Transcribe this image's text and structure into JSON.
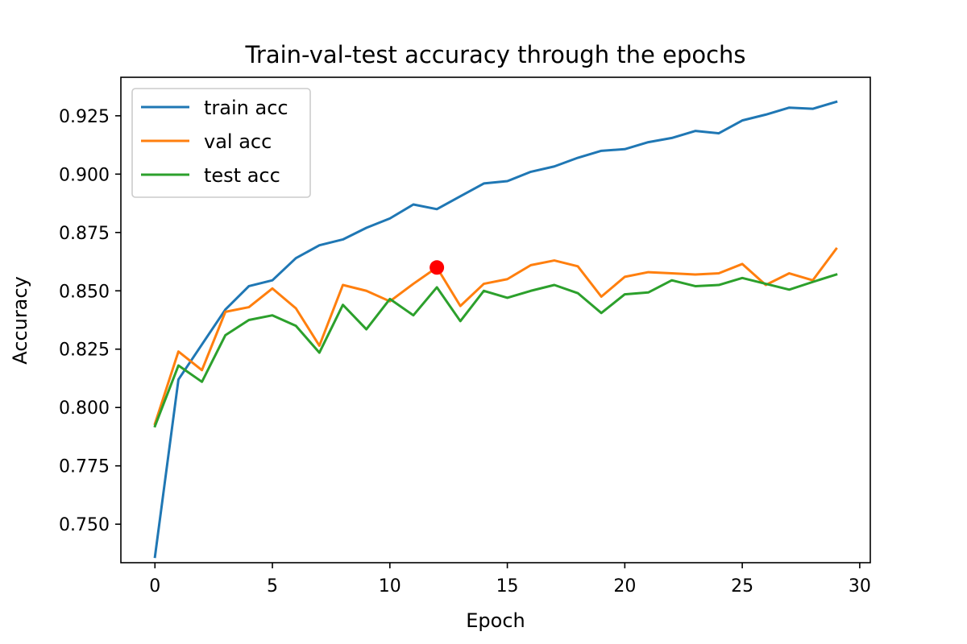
{
  "chart_data": {
    "type": "line",
    "title": "Train-val-test accuracy through the epochs",
    "xlabel": "Epoch",
    "ylabel": "Accuracy",
    "xlim": [
      -1.45,
      30.45
    ],
    "ylim": [
      0.7335,
      0.9415
    ],
    "xticks": [
      0,
      5,
      10,
      15,
      20,
      25,
      30
    ],
    "yticks": [
      0.75,
      0.775,
      0.8,
      0.825,
      0.85,
      0.875,
      0.9,
      0.925
    ],
    "ytick_labels": [
      "0.750",
      "0.775",
      "0.800",
      "0.825",
      "0.850",
      "0.875",
      "0.900",
      "0.925"
    ],
    "grid": false,
    "legend_position": "upper-left",
    "x": [
      0,
      1,
      2,
      3,
      4,
      5,
      6,
      7,
      8,
      9,
      10,
      11,
      12,
      13,
      14,
      15,
      16,
      17,
      18,
      19,
      20,
      21,
      22,
      23,
      24,
      25,
      26,
      27,
      28,
      29
    ],
    "series": [
      {
        "name": "train acc",
        "color": "#1f77b4",
        "values": [
          0.736,
          0.812,
          0.827,
          0.842,
          0.852,
          0.8545,
          0.864,
          0.8695,
          0.872,
          0.877,
          0.881,
          0.887,
          0.885,
          0.8905,
          0.896,
          0.897,
          0.901,
          0.9033,
          0.907,
          0.91,
          0.9107,
          0.9137,
          0.9155,
          0.9185,
          0.9175,
          0.923,
          0.9255,
          0.9285,
          0.928,
          0.931
        ]
      },
      {
        "name": "val acc",
        "color": "#ff7f0e",
        "values": [
          0.793,
          0.824,
          0.816,
          0.841,
          0.843,
          0.851,
          0.8425,
          0.8265,
          0.8525,
          0.85,
          0.8455,
          0.853,
          0.86,
          0.8435,
          0.853,
          0.855,
          0.861,
          0.863,
          0.8605,
          0.8475,
          0.856,
          0.858,
          0.8575,
          0.857,
          0.8575,
          0.8615,
          0.8525,
          0.8575,
          0.8545,
          0.868
        ]
      },
      {
        "name": "test acc",
        "color": "#2ca02c",
        "values": [
          0.792,
          0.818,
          0.811,
          0.831,
          0.8375,
          0.8395,
          0.835,
          0.8235,
          0.844,
          0.8335,
          0.8465,
          0.8395,
          0.8515,
          0.837,
          0.85,
          0.847,
          0.85,
          0.8525,
          0.849,
          0.8405,
          0.8485,
          0.8493,
          0.8545,
          0.852,
          0.8525,
          0.8555,
          0.853,
          0.8505,
          0.8538,
          0.857
        ]
      }
    ],
    "highlight_point": {
      "x": 12,
      "y": 0.86,
      "color": "#ff0000"
    }
  }
}
